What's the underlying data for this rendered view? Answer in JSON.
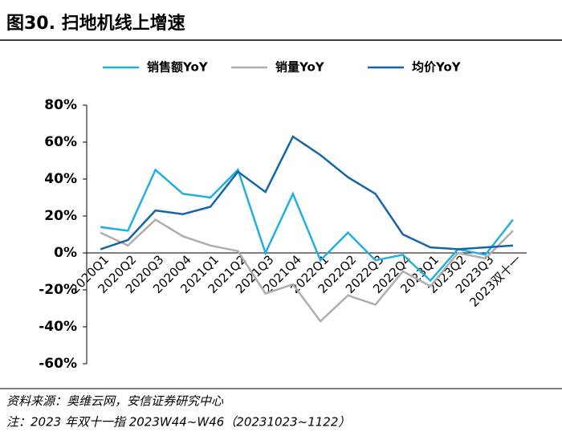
{
  "chart_data": {
    "type": "line",
    "title": "图30. 扫地机线上增速",
    "categories": [
      "2020Q1",
      "2020Q2",
      "2020Q3",
      "2020Q4",
      "2021Q1",
      "2021Q2",
      "2021Q3",
      "2021Q4",
      "2022Q1",
      "2022Q2",
      "2022Q3",
      "2022Q4",
      "2023Q1",
      "2023Q2",
      "2023Q3",
      "2023双十一"
    ],
    "series": [
      {
        "name": "销售额YoY",
        "color": "#1fb0e0",
        "values": [
          14,
          12,
          45,
          32,
          30,
          45,
          0,
          32,
          -4,
          11,
          -4,
          -1,
          -15,
          2,
          -1,
          18
        ]
      },
      {
        "name": "销量YoY",
        "color": "#b3abac",
        "values": [
          11,
          4,
          18,
          9,
          4,
          1,
          -22,
          -17,
          -37,
          -23,
          -28,
          -10,
          -18,
          0,
          -3,
          12
        ]
      },
      {
        "name": "均价YoY",
        "color": "#1565a8",
        "values": [
          2,
          7,
          23,
          21,
          25,
          44,
          33,
          63,
          53,
          41,
          32,
          10,
          3,
          2,
          3,
          4
        ]
      }
    ],
    "ylim": [
      -60,
      80
    ],
    "yticks": [
      {
        "value": -60,
        "label": "-60%"
      },
      {
        "value": -40,
        "label": "-40%"
      },
      {
        "value": -20,
        "label": "-20%"
      },
      {
        "value": 0,
        "label": "0%"
      },
      {
        "value": 20,
        "label": "20%"
      },
      {
        "value": 40,
        "label": "40%"
      },
      {
        "value": 60,
        "label": "60%"
      },
      {
        "value": 80,
        "label": "80%"
      }
    ],
    "legend": "top",
    "source": "资料来源：奥维云网，安信证券研究中心",
    "note": "注：2023 年双十一指 2023W44~W46（20231023~1122）"
  }
}
